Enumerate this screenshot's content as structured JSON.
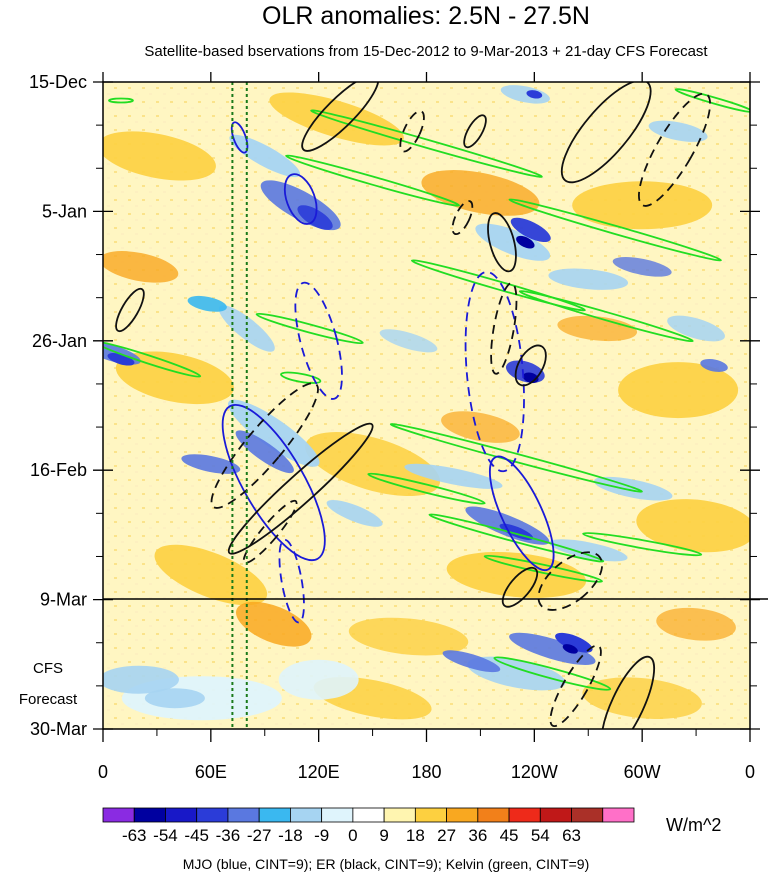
{
  "chart_data": {
    "type": "heatmap",
    "title": "OLR anomalies: 2.5N - 27.5N",
    "subtitle": "Satellite-based bservations from 15-Dec-2012 to 9-Mar-2013 + 21-day CFS Forecast",
    "x_axis": {
      "label": "",
      "range_deg_east": [
        0,
        360
      ],
      "ticks": [
        {
          "lon": 0,
          "label": "0"
        },
        {
          "lon": 60,
          "label": "60E"
        },
        {
          "lon": 120,
          "label": "120E"
        },
        {
          "lon": 180,
          "label": "180"
        },
        {
          "lon": 240,
          "label": "120W"
        },
        {
          "lon": 300,
          "label": "60W"
        },
        {
          "lon": 360,
          "label": "0"
        }
      ]
    },
    "y_axis": {
      "label": "",
      "range_days": [
        0,
        105
      ],
      "ticks": [
        {
          "day": 0,
          "label": "15-Dec"
        },
        {
          "day": 21,
          "label": "5-Jan"
        },
        {
          "day": 42,
          "label": "26-Jan"
        },
        {
          "day": 63,
          "label": "16-Feb"
        },
        {
          "day": 84,
          "label": "9-Mar"
        },
        {
          "day": 105,
          "label": "30-Mar"
        }
      ]
    },
    "forecast_label": [
      "CFS",
      "Forecast"
    ],
    "forecast_start_day": 84,
    "reference_longitudes": [
      72,
      80
    ],
    "colorbar": {
      "units": "W/m^2",
      "labels": [
        "-63",
        "-54",
        "-45",
        "-36",
        "-27",
        "-18",
        "-9",
        "0",
        "9",
        "18",
        "27",
        "36",
        "45",
        "54",
        "63"
      ],
      "colors": [
        "#8a2be2",
        "#0000a0",
        "#1818c8",
        "#2b3cd8",
        "#5a78e0",
        "#3ab8f0",
        "#a6d4f2",
        "#dff4fc",
        "#ffffff",
        "#fff5b0",
        "#fdd040",
        "#f9a820",
        "#f2801a",
        "#ee2a1a",
        "#c01818",
        "#aa3028",
        "#ff70c8"
      ]
    },
    "contours": {
      "mjo": {
        "color": "#1a1ad8",
        "cint": 9
      },
      "er": {
        "color": "#111111",
        "cint": 9
      },
      "kelvin": {
        "color": "#22dd22",
        "cint": 9
      }
    },
    "footer": "MJO (blue, CINT=9); ER (black, CINT=9); Kelvin (green, CINT=9)"
  }
}
